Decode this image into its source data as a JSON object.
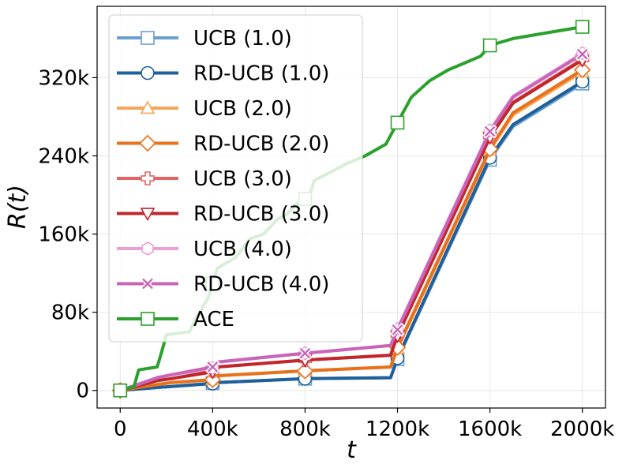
{
  "chart_data": {
    "type": "line",
    "title": "",
    "xlabel": "t",
    "ylabel": "R(t)",
    "xlim": [
      -100000,
      2100000
    ],
    "ylim": [
      -18000,
      393000
    ],
    "xticks": [
      0,
      400000,
      800000,
      1200000,
      1600000,
      2000000
    ],
    "xtick_labels": [
      "0",
      "400k",
      "800k",
      "1200k",
      "1600k",
      "2000k"
    ],
    "yticks": [
      0,
      80000,
      160000,
      240000,
      320000
    ],
    "ytick_labels": [
      "0",
      "80k",
      "160k",
      "240k",
      "320k"
    ],
    "grid": true,
    "legend_position": "upper-left",
    "series": [
      {
        "name": "UCB (1.0)",
        "color": "#6a9fce",
        "marker": "square",
        "hollow": true,
        "x": [
          0,
          50000,
          160000,
          220000,
          400000,
          420000,
          800000,
          1170000,
          1200000,
          1600000,
          1700000,
          2000000
        ],
        "y": [
          0,
          1000,
          3000,
          4000,
          7500,
          8000,
          12000,
          13000,
          32000,
          236000,
          270000,
          314000
        ]
      },
      {
        "name": "RD-UCB (1.0)",
        "color": "#1f5f9a",
        "marker": "circle",
        "hollow": true,
        "x": [
          0,
          50000,
          160000,
          220000,
          400000,
          420000,
          800000,
          1170000,
          1200000,
          1600000,
          1700000,
          2000000
        ],
        "y": [
          0,
          1000,
          3000,
          4000,
          7000,
          8000,
          12000,
          13000,
          33000,
          238000,
          272000,
          316000
        ]
      },
      {
        "name": "UCB (2.0)",
        "color": "#f6a65a",
        "marker": "triangle-up",
        "hollow": true,
        "x": [
          0,
          50000,
          160000,
          220000,
          400000,
          420000,
          800000,
          1170000,
          1200000,
          1600000,
          1700000,
          2000000
        ],
        "y": [
          0,
          2000,
          6000,
          8000,
          11000,
          15000,
          20000,
          24000,
          43000,
          246000,
          282000,
          326000
        ]
      },
      {
        "name": "RD-UCB (2.0)",
        "color": "#e8711c",
        "marker": "diamond",
        "hollow": true,
        "x": [
          0,
          50000,
          160000,
          220000,
          400000,
          420000,
          800000,
          1170000,
          1200000,
          1600000,
          1700000,
          2000000
        ],
        "y": [
          0,
          2000,
          6000,
          8000,
          11000,
          15000,
          20000,
          24000,
          44000,
          247000,
          284000,
          328000
        ]
      },
      {
        "name": "UCB (3.0)",
        "color": "#e06666",
        "marker": "plus",
        "hollow": true,
        "x": [
          0,
          50000,
          160000,
          220000,
          400000,
          420000,
          800000,
          1170000,
          1200000,
          1600000,
          1700000,
          2000000
        ],
        "y": [
          0,
          3000,
          10000,
          12000,
          20000,
          24000,
          31000,
          36000,
          57000,
          260000,
          295000,
          339000
        ]
      },
      {
        "name": "RD-UCB (3.0)",
        "color": "#c0272d",
        "marker": "triangle-down",
        "hollow": true,
        "x": [
          0,
          50000,
          160000,
          220000,
          400000,
          420000,
          800000,
          1170000,
          1200000,
          1600000,
          1700000,
          2000000
        ],
        "y": [
          0,
          3000,
          10000,
          12000,
          19000,
          24000,
          31000,
          36000,
          56000,
          259000,
          294000,
          338000
        ]
      },
      {
        "name": "UCB (4.0)",
        "color": "#e9a0d6",
        "marker": "hexagon",
        "hollow": true,
        "x": [
          0,
          50000,
          160000,
          220000,
          400000,
          420000,
          800000,
          1170000,
          1200000,
          1600000,
          1700000,
          2000000
        ],
        "y": [
          0,
          4000,
          13000,
          16000,
          23000,
          29000,
          38000,
          46000,
          63000,
          266000,
          301000,
          345000
        ]
      },
      {
        "name": "RD-UCB (4.0)",
        "color": "#c965b8",
        "marker": "x-filled",
        "hollow": false,
        "x": [
          0,
          50000,
          160000,
          220000,
          400000,
          420000,
          800000,
          1170000,
          1200000,
          1600000,
          1700000,
          2000000
        ],
        "y": [
          0,
          4000,
          13000,
          16000,
          24000,
          29000,
          38000,
          46000,
          62000,
          265000,
          300000,
          344000
        ]
      },
      {
        "name": "ACE",
        "color": "#2ca02c",
        "marker": "square",
        "hollow": true,
        "x": [
          0,
          30000,
          60000,
          80000,
          160000,
          180000,
          200000,
          300000,
          330000,
          380000,
          420000,
          500000,
          560000,
          620000,
          680000,
          720000,
          760000,
          800000,
          820000,
          840000,
          900000,
          980000,
          1060000,
          1150000,
          1200000,
          1260000,
          1340000,
          1420000,
          1500000,
          1560000,
          1600000,
          1700000,
          1850000,
          1950000,
          2000000
        ],
        "y": [
          0,
          2000,
          4000,
          21000,
          24000,
          40000,
          57000,
          60000,
          75000,
          94000,
          125000,
          136000,
          155000,
          160000,
          175000,
          180000,
          190000,
          196000,
          200000,
          215000,
          222000,
          232000,
          240000,
          252000,
          274000,
          300000,
          317000,
          328000,
          336000,
          342000,
          353000,
          360000,
          366000,
          370000,
          372000
        ],
        "markers_at_x": [
          0,
          400000,
          800000,
          1200000,
          1600000,
          2000000
        ]
      }
    ],
    "legend_entries": [
      "UCB (1.0)",
      "RD-UCB (1.0)",
      "UCB (2.0)",
      "RD-UCB (2.0)",
      "UCB (3.0)",
      "RD-UCB (3.0)",
      "UCB (4.0)",
      "RD-UCB (4.0)",
      "ACE"
    ]
  }
}
